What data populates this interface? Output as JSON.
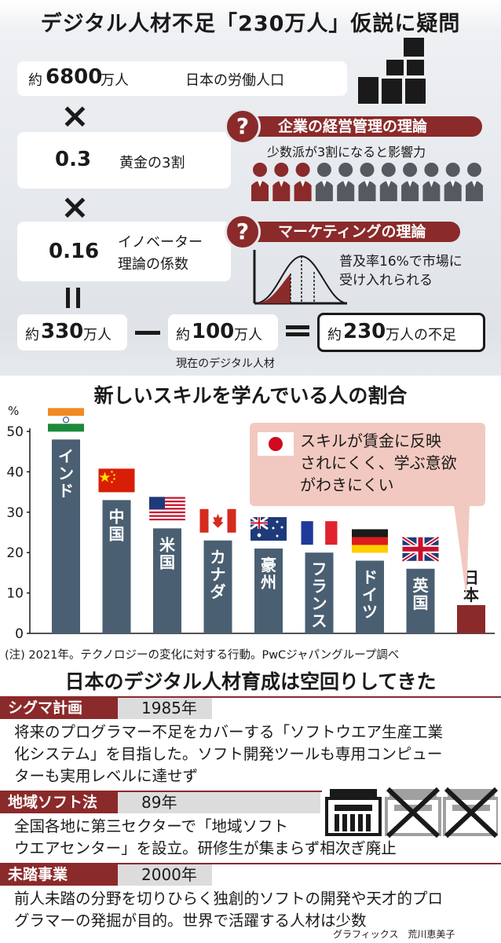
{
  "section1": {
    "title": "デジタル人材不足「230万人」仮説に疑問",
    "row1": {
      "prefix": "約",
      "number": "6800",
      "unit": "万人",
      "label": "日本の労働人口"
    },
    "times": "×",
    "row2": {
      "number": "0.3",
      "label": "黄金の3割"
    },
    "row3": {
      "number": "0.16",
      "label_line1": "イノベーター",
      "label_line2": "理論の係数"
    },
    "equals": "＝",
    "theory1": {
      "q": "?",
      "title": "企業の経営管理の理論",
      "caption": "少数派が3割になると影響力"
    },
    "theory2": {
      "q": "?",
      "title": "マーケティングの理論",
      "caption_line1": "普及率16%で市場に",
      "caption_line2": "受け入れられる"
    },
    "result": {
      "a_prefix": "約",
      "a_number": "330",
      "a_unit": "万人",
      "minus": "−",
      "b_prefix": "約",
      "b_number": "100",
      "b_unit": "万人",
      "b_caption": "現在のデジタル人材",
      "eq": "＝",
      "c_prefix": "約",
      "c_number": "230",
      "c_unit": "万人の不足"
    },
    "colors": {
      "accent": "#8b2a2a",
      "dark": "#1a1a1a",
      "people_gray": "#555a60"
    }
  },
  "chart_data": {
    "type": "bar",
    "title": "新しいスキルを学んでいる人の割合",
    "ylabel": "%",
    "ylim": [
      0,
      50
    ],
    "yticks": [
      "0",
      "10",
      "20",
      "30",
      "40",
      "50"
    ],
    "categories": [
      "インド",
      "中国",
      "米国",
      "カナダ",
      "豪州",
      "フランス",
      "ドイツ",
      "英国",
      "日本"
    ],
    "values": [
      48,
      33,
      26,
      23,
      21,
      20,
      18,
      16,
      7
    ],
    "flags": [
      "india-flag",
      "china-flag",
      "usa-flag",
      "canada-flag",
      "australia-flag",
      "france-flag",
      "germany-flag",
      "uk-flag",
      "japan-flag"
    ],
    "bar_colors": [
      "#4a5f72",
      "#4a5f72",
      "#4a5f72",
      "#4a5f72",
      "#4a5f72",
      "#4a5f72",
      "#4a5f72",
      "#4a5f72",
      "#8b2a2a"
    ],
    "callout_line1": "スキルが賃金に反映",
    "callout_line2": "されにくく、学ぶ意欲",
    "callout_line3": "がわきにくい",
    "note": "(注) 2021年。テクノロジーの変化に対する行動。PwCジャパングループ調べ"
  },
  "section3": {
    "title": "日本のデジタル人材育成は空回りしてきた",
    "items": [
      {
        "label": "シグマ計画",
        "year": "1985年",
        "line1": "将来のプログラマー不足をカバーする「ソフトウエア生産工業",
        "line2": "化システム」を目指した。ソフト開発ツールも専用コンピュー",
        "line3": "ターも実用レベルに達せず"
      },
      {
        "label": "地域ソフト法",
        "year": "89年",
        "line1": "全国各地に第三セクターで「地域ソフト",
        "line2": "ウエアセンター」を設立。研修生が集まらず相次ぎ廃止"
      },
      {
        "label": "未踏事業",
        "year": "2000年",
        "line1": "前人未踏の分野を切りひらく独創的ソフトの開発や天才的プロ",
        "line2": "グラマーの発掘が目的。世界で活躍する人材は少数"
      }
    ],
    "credit": "グラフィックス　荒川恵美子"
  }
}
